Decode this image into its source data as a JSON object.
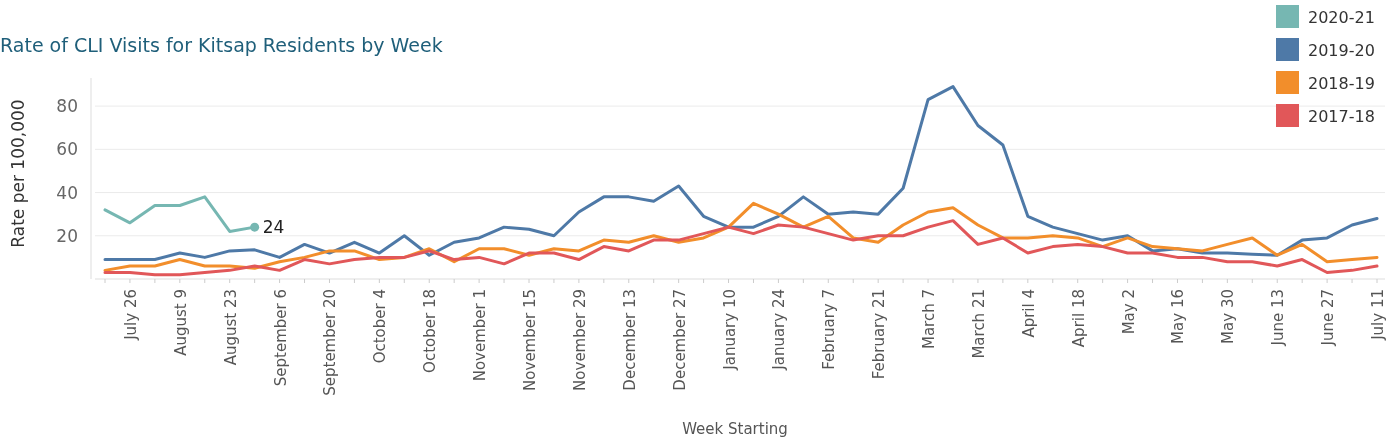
{
  "chart_data": {
    "type": "line",
    "title": "Rate of CLI Visits for Kitsap Residents by Week",
    "xlabel": "Week Starting",
    "ylabel": "Rate per 100,000",
    "categories": [
      null,
      "July 26",
      null,
      "August 9",
      null,
      "August 23",
      null,
      "September 6",
      null,
      "September 20",
      null,
      "October 4",
      null,
      "October 18",
      null,
      "November 1",
      null,
      "November 15",
      null,
      "November 29",
      null,
      "December 13",
      null,
      "December 27",
      null,
      "January 10",
      null,
      "January 24",
      null,
      "February 7",
      null,
      "February 21",
      null,
      "March 7",
      null,
      "March 21",
      null,
      "April 4",
      null,
      "April 18",
      null,
      "May 2",
      null,
      "May 16",
      null,
      "May 30",
      null,
      "June 13",
      null,
      "June 27",
      null,
      "July 11"
    ],
    "ylim": [
      0,
      93
    ],
    "yticks": [
      20,
      40,
      60,
      80
    ],
    "grid": "y",
    "legend": "top right",
    "marker": "none",
    "line_style": "solid",
    "series": [
      {
        "name": "2020-21",
        "color": "#76b7b2",
        "values": [
          32,
          26,
          34,
          34,
          38,
          22,
          24,
          null,
          null,
          null,
          null,
          null,
          null,
          null,
          null,
          null,
          null,
          null,
          null,
          null,
          null,
          null,
          null,
          null,
          null,
          null,
          null,
          null,
          null,
          null,
          null,
          null,
          null,
          null,
          null,
          null,
          null,
          null,
          null,
          null,
          null,
          null,
          null,
          null,
          null,
          null,
          null,
          null,
          null,
          null,
          null,
          null
        ],
        "value_labels": [
          null,
          null,
          null,
          null,
          null,
          null,
          "24",
          null,
          null,
          null,
          null,
          null,
          null,
          null,
          null,
          null,
          null,
          null,
          null,
          null,
          null,
          null,
          null,
          null,
          null,
          null,
          null,
          null,
          null,
          null,
          null,
          null,
          null,
          null,
          null,
          null,
          null,
          null,
          null,
          null,
          null,
          null,
          null,
          null,
          null,
          null,
          null,
          null,
          null,
          null,
          null,
          null
        ]
      },
      {
        "name": "2019-20",
        "color": "#4e79a7",
        "values": [
          9,
          9,
          9,
          12,
          10,
          13,
          13.5,
          10,
          16,
          12,
          17,
          12,
          20,
          11,
          17,
          19,
          24,
          23,
          20,
          31,
          38,
          38,
          36,
          43,
          29,
          24,
          24,
          29,
          38,
          30,
          31,
          30,
          42,
          83,
          89,
          71,
          62,
          29,
          24,
          21,
          18,
          20,
          13,
          14,
          12,
          12,
          11.5,
          11,
          18,
          19,
          25,
          28
        ]
      },
      {
        "name": "2018-19",
        "color": "#f28e2b",
        "values": [
          4,
          6,
          6,
          9,
          6,
          6,
          5,
          8,
          10,
          13,
          13,
          9,
          10,
          14,
          8,
          14,
          14,
          11,
          14,
          13,
          18,
          17,
          20,
          17,
          19,
          24,
          35,
          30,
          24,
          29,
          19,
          17,
          25,
          31,
          33,
          25,
          19,
          19,
          20,
          19,
          15,
          19,
          15,
          14,
          13,
          16,
          19,
          11,
          16,
          8,
          9,
          10
        ]
      },
      {
        "name": "2017-18",
        "color": "#e15759",
        "values": [
          3,
          3,
          2,
          2,
          3,
          4,
          6,
          4,
          9,
          7,
          9,
          10,
          10,
          13,
          9,
          10,
          7,
          12,
          12,
          9,
          15,
          13,
          18,
          18,
          21,
          24,
          21,
          25,
          24,
          21,
          18,
          20,
          20,
          24,
          27,
          16,
          19,
          12,
          15,
          16,
          15,
          12,
          12,
          10,
          10,
          8,
          8,
          6,
          9,
          3,
          4,
          6
        ]
      }
    ]
  }
}
